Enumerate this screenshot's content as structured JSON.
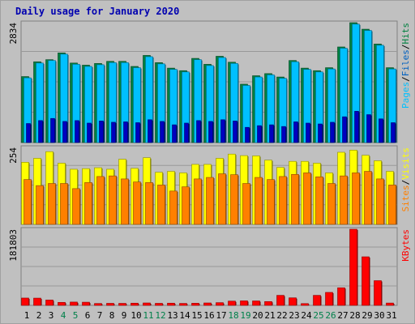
{
  "chart_data": {
    "type": "bar",
    "title": "Daily usage for January 2020",
    "categories": [
      "1",
      "2",
      "3",
      "4",
      "5",
      "6",
      "7",
      "8",
      "9",
      "10",
      "11",
      "12",
      "13",
      "14",
      "15",
      "16",
      "17",
      "18",
      "19",
      "20",
      "21",
      "22",
      "23",
      "24",
      "25",
      "26",
      "27",
      "28",
      "29",
      "30",
      "31"
    ],
    "weekend_days": [
      "4",
      "5",
      "11",
      "12",
      "18",
      "19",
      "25",
      "26"
    ],
    "panels": [
      {
        "id": "hits",
        "ymax": 2834,
        "ymax_label": "2834",
        "series": [
          {
            "name": "Hits",
            "color": "#008040",
            "values": [
              1560,
              1910,
              1960,
              2120,
              1880,
              1830,
              1870,
              1920,
              1920,
              1800,
              2060,
              1890,
              1760,
              1700,
              1990,
              1850,
              2040,
              1900,
              1380,
              1580,
              1630,
              1550,
              1940,
              1760,
              1700,
              1770,
              2260,
              2834,
              2680,
              2330,
              1770
            ]
          },
          {
            "name": "Files",
            "color": "#00c0ff",
            "values": [
              1530,
              1880,
              1940,
              2090,
              1850,
              1800,
              1840,
              1890,
              1890,
              1770,
              2030,
              1860,
              1730,
              1670,
              1960,
              1820,
              2010,
              1870,
              1350,
              1550,
              1600,
              1520,
              1910,
              1730,
              1670,
              1740,
              2230,
              2800,
              2650,
              2300,
              1740
            ]
          },
          {
            "name": "Pages",
            "color": "#0000c0",
            "values": [
              450,
              520,
              570,
              500,
              520,
              460,
              510,
              480,
              490,
              470,
              540,
              500,
              420,
              460,
              520,
              500,
              540,
              510,
              360,
              400,
              420,
              380,
              490,
              460,
              440,
              480,
              610,
              740,
              660,
              560,
              470
            ]
          }
        ],
        "axis_label_words": [
          "Pages",
          "Files",
          "Hits"
        ],
        "axis_label_colors": [
          "#00c0ff",
          "#0060c0",
          "#008040"
        ]
      },
      {
        "id": "visits",
        "ymax": 254,
        "ymax_label": "254",
        "series": [
          {
            "name": "Visits",
            "color": "#ffff00",
            "values": [
              205,
              218,
              240,
              202,
              182,
              184,
              187,
              182,
              215,
              185,
              220,
              172,
              175,
              170,
              198,
              198,
              218,
              232,
              227,
              226,
              212,
              188,
              208,
              208,
              202,
              170,
              238,
              245,
              228,
              210,
              175
            ]
          },
          {
            "name": "Sites",
            "color": "#ff8000",
            "values": [
              148,
              128,
              135,
              135,
              118,
              138,
              158,
              160,
              150,
              140,
              138,
              130,
              110,
              124,
              150,
              155,
              167,
              164,
              135,
              155,
              148,
              158,
              165,
              170,
              157,
              135,
              160,
              170,
              175,
              150,
              130
            ]
          }
        ],
        "axis_label_words": [
          "Sites",
          "Visits"
        ],
        "axis_label_colors": [
          "#ff8000",
          "#ffff00"
        ]
      },
      {
        "id": "kbytes",
        "ymax": 181803,
        "ymax_label": "181803",
        "series": [
          {
            "name": "KBytes",
            "color": "#ff0000",
            "values": [
              17500,
              17300,
              12800,
              7200,
              7900,
              7600,
              4500,
              4900,
              4800,
              5300,
              5800,
              4900,
              5300,
              4700,
              5100,
              5800,
              6500,
              10200,
              10800,
              10600,
              9100,
              24000,
              18000,
              4300,
              24000,
              31000,
              42000,
              181803,
              116000,
              59000,
              5600
            ]
          }
        ],
        "axis_label_words": [
          "KBytes"
        ],
        "axis_label_colors": [
          "#ff0000"
        ]
      }
    ],
    "x_label_colors": {
      "weekday": "#000000",
      "weekend": "#00804a"
    }
  }
}
